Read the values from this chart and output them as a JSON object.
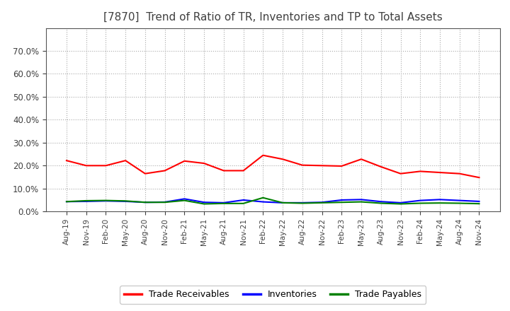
{
  "title": "[7870]  Trend of Ratio of TR, Inventories and TP to Total Assets",
  "x_labels": [
    "Aug-19",
    "Nov-19",
    "Feb-20",
    "May-20",
    "Aug-20",
    "Nov-20",
    "Feb-21",
    "May-21",
    "Aug-21",
    "Nov-21",
    "Feb-22",
    "May-22",
    "Aug-22",
    "Nov-22",
    "Feb-23",
    "May-23",
    "Aug-23",
    "Nov-23",
    "Feb-24",
    "May-24",
    "Aug-24",
    "Nov-24"
  ],
  "trade_receivables": [
    0.222,
    0.2,
    0.2,
    0.222,
    0.165,
    0.178,
    0.22,
    0.21,
    0.178,
    0.178,
    0.245,
    0.228,
    0.202,
    0.2,
    0.198,
    0.228,
    0.195,
    0.165,
    0.175,
    0.17,
    0.165,
    0.148
  ],
  "inventories": [
    0.043,
    0.044,
    0.046,
    0.044,
    0.04,
    0.041,
    0.055,
    0.04,
    0.038,
    0.05,
    0.042,
    0.038,
    0.038,
    0.04,
    0.05,
    0.052,
    0.043,
    0.038,
    0.048,
    0.052,
    0.048,
    0.044
  ],
  "trade_payables": [
    0.043,
    0.047,
    0.048,
    0.046,
    0.04,
    0.04,
    0.048,
    0.033,
    0.035,
    0.035,
    0.06,
    0.038,
    0.036,
    0.038,
    0.04,
    0.042,
    0.036,
    0.033,
    0.036,
    0.037,
    0.036,
    0.034
  ],
  "tr_color": "#FF0000",
  "inv_color": "#0000FF",
  "tp_color": "#008000",
  "ylim": [
    0.0,
    0.8
  ],
  "yticks": [
    0.0,
    0.1,
    0.2,
    0.3,
    0.4,
    0.5,
    0.6,
    0.7
  ],
  "bg_color": "#FFFFFF",
  "plot_bg_color": "#FFFFFF",
  "grid_color": "#AAAAAA",
  "title_color": "#404040",
  "tick_color": "#404040",
  "legend_labels": [
    "Trade Receivables",
    "Inventories",
    "Trade Payables"
  ]
}
